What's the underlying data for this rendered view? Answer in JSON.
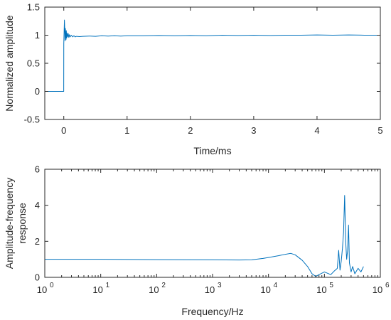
{
  "chart_data": [
    {
      "type": "line",
      "title": "",
      "xlabel": "Time/ms",
      "ylabel": "Normalized amplitude",
      "xlim": [
        -0.3,
        5
      ],
      "ylim": [
        -0.5,
        1.5
      ],
      "x_ticks": [
        0,
        1,
        2,
        3,
        4,
        5
      ],
      "x_tick_labels": [
        "0",
        "1",
        "2",
        "3",
        "4",
        "5"
      ],
      "y_ticks": [
        -0.5,
        0,
        0.5,
        1,
        1.5
      ],
      "y_tick_labels": [
        "-0.5",
        "0",
        "0.5",
        "1",
        "1.5"
      ],
      "grid": false,
      "series": [
        {
          "color": "#0072BD",
          "x": [
            -0.3,
            -0.001,
            0.0,
            0.01,
            0.015,
            0.02,
            0.025,
            0.03,
            0.035,
            0.04,
            0.045,
            0.05,
            0.06,
            0.07,
            0.08,
            0.09,
            0.1,
            0.12,
            0.14,
            0.16,
            0.18,
            0.2,
            0.25,
            0.3,
            0.4,
            0.5,
            0.6,
            0.7,
            0.8,
            0.9,
            1.0,
            1.25,
            1.5,
            1.75,
            2.0,
            2.25,
            2.5,
            2.75,
            3.0,
            3.25,
            3.5,
            3.75,
            4.0,
            4.25,
            4.5,
            4.75,
            5.0
          ],
          "y": [
            0,
            0,
            0.85,
            1.27,
            1.12,
            0.9,
            1.12,
            1.02,
            0.92,
            1.08,
            0.95,
            1.04,
            0.97,
            1.03,
            0.96,
            1.01,
            0.97,
            1.0,
            0.97,
            0.99,
            0.97,
            0.98,
            0.975,
            0.98,
            0.985,
            0.98,
            0.99,
            0.985,
            0.99,
            0.985,
            0.99,
            0.99,
            0.995,
            0.99,
            0.995,
            0.99,
            1.0,
            0.995,
            1.0,
            0.995,
            1.0,
            1.0,
            1.005,
            1.0,
            1.005,
            1.0,
            1.0
          ]
        }
      ]
    },
    {
      "type": "line",
      "title": "",
      "xlabel": "Frequency/Hz",
      "ylabel": "Amplitude-frequency response",
      "xscale": "log",
      "xlim": [
        1,
        1000000
      ],
      "ylim": [
        0,
        6
      ],
      "x_ticks": [
        1,
        10,
        100,
        1000,
        10000,
        100000,
        1000000
      ],
      "x_tick_labels": [
        {
          "base": "10",
          "exp": "0"
        },
        {
          "base": "10",
          "exp": "1"
        },
        {
          "base": "10",
          "exp": "2"
        },
        {
          "base": "10",
          "exp": "3"
        },
        {
          "base": "10",
          "exp": "4"
        },
        {
          "base": "10",
          "exp": "5"
        },
        {
          "base": "10",
          "exp": "6"
        }
      ],
      "y_ticks": [
        0,
        2,
        4,
        6
      ],
      "y_tick_labels": [
        "0",
        "2",
        "4",
        "6"
      ],
      "grid": false,
      "series": [
        {
          "color": "#0072BD",
          "x": [
            1,
            10,
            100,
            1000,
            3000,
            5000,
            8000,
            10000,
            15000,
            20000,
            25000,
            30000,
            40000,
            50000,
            60000,
            70000,
            80000,
            100000,
            130000,
            150000,
            170000,
            180000,
            190000,
            200000,
            210000,
            220000,
            230000,
            240000,
            250000,
            260000,
            270000,
            280000,
            300000,
            320000,
            350000,
            400000,
            450000,
            500000
          ],
          "y": [
            1.0,
            1.0,
            0.98,
            0.97,
            0.96,
            0.97,
            1.05,
            1.1,
            1.2,
            1.28,
            1.33,
            1.25,
            0.95,
            0.6,
            0.2,
            0.05,
            0.15,
            0.3,
            0.15,
            0.35,
            0.5,
            1.5,
            0.4,
            0.9,
            1.6,
            2.5,
            4.55,
            2.0,
            1.0,
            1.5,
            2.9,
            0.8,
            0.3,
            0.6,
            0.2,
            0.5,
            0.3,
            0.6
          ]
        }
      ]
    }
  ]
}
